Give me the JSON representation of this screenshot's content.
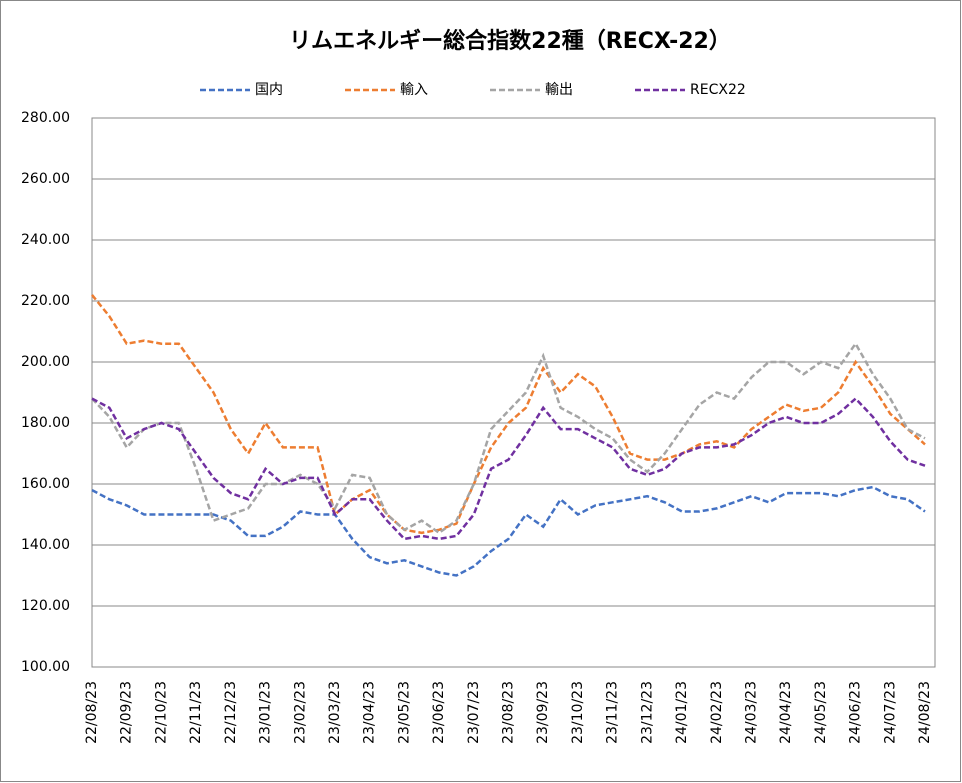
{
  "chart_data": {
    "type": "line",
    "title": "リムエネルギー総合指数22種（RECX-22）",
    "categories": [
      "22/08/23",
      null,
      "22/09/23",
      null,
      "22/10/23",
      null,
      "22/11/23",
      null,
      "22/12/23",
      null,
      "23/01/23",
      null,
      "23/02/23",
      null,
      "23/03/23",
      null,
      "23/04/23",
      null,
      "23/05/23",
      null,
      "23/06/23",
      null,
      "23/07/23",
      null,
      "23/08/23",
      null,
      "23/09/23",
      null,
      "23/10/23",
      null,
      "23/11/23",
      null,
      "23/12/23",
      null,
      "24/01/23",
      null,
      "24/02/23",
      null,
      "24/03/23",
      null,
      "24/04/23",
      null,
      "24/05/23",
      null,
      "24/06/23",
      null,
      "24/07/23",
      null,
      "24/08/23"
    ],
    "series": [
      {
        "name": "国内",
        "color": "#4472c4",
        "values": [
          158,
          155,
          153,
          150,
          150,
          150,
          150,
          150,
          148,
          143,
          143,
          146,
          151,
          150,
          150,
          142,
          136,
          134,
          135,
          133,
          131,
          130,
          133,
          138,
          142,
          150,
          146,
          155,
          150,
          153,
          154,
          155,
          156,
          154,
          151,
          151,
          152,
          154,
          156,
          154,
          157,
          157,
          157,
          156,
          158,
          159,
          156,
          155,
          151
        ]
      },
      {
        "name": "輸入",
        "color": "#ed7d31",
        "values": [
          222,
          215,
          206,
          207,
          206,
          206,
          198,
          190,
          178,
          170,
          180,
          172,
          172,
          172,
          150,
          155,
          158,
          150,
          145,
          144,
          145,
          147,
          160,
          172,
          180,
          185,
          198,
          190,
          196,
          192,
          182,
          170,
          168,
          168,
          170,
          173,
          174,
          172,
          178,
          182,
          186,
          184,
          185,
          190,
          200,
          192,
          183,
          178,
          173
        ]
      },
      {
        "name": "輸出",
        "color": "#a5a5a5",
        "values": [
          188,
          182,
          172,
          178,
          180,
          180,
          165,
          148,
          150,
          152,
          160,
          160,
          163,
          160,
          152,
          163,
          162,
          150,
          145,
          148,
          144,
          148,
          160,
          178,
          184,
          190,
          202,
          185,
          182,
          178,
          175,
          168,
          164,
          170,
          178,
          186,
          190,
          188,
          195,
          200,
          200,
          196,
          200,
          198,
          206,
          196,
          188,
          178,
          175
        ]
      },
      {
        "name": "RECX22",
        "color": "#7030a0",
        "values": [
          188,
          185,
          175,
          178,
          180,
          178,
          170,
          162,
          157,
          155,
          165,
          160,
          162,
          162,
          150,
          155,
          155,
          148,
          142,
          143,
          142,
          143,
          150,
          165,
          168,
          176,
          185,
          178,
          178,
          175,
          172,
          165,
          163,
          165,
          170,
          172,
          172,
          173,
          176,
          180,
          182,
          180,
          180,
          183,
          188,
          182,
          174,
          168,
          166
        ]
      }
    ],
    "ylim": [
      100,
      280
    ],
    "yticks": [
      {
        "value": 100,
        "label": "100.00"
      },
      {
        "value": 120,
        "label": "120.00"
      },
      {
        "value": 140,
        "label": "140.00"
      },
      {
        "value": 160,
        "label": "160.00"
      },
      {
        "value": 180,
        "label": "180.00"
      },
      {
        "value": 200,
        "label": "200.00"
      },
      {
        "value": 220,
        "label": "220.00"
      },
      {
        "value": 240,
        "label": "240.00"
      },
      {
        "value": 260,
        "label": "260.00"
      },
      {
        "value": 280,
        "label": "280.00"
      }
    ],
    "grid": true,
    "legend": "top"
  }
}
